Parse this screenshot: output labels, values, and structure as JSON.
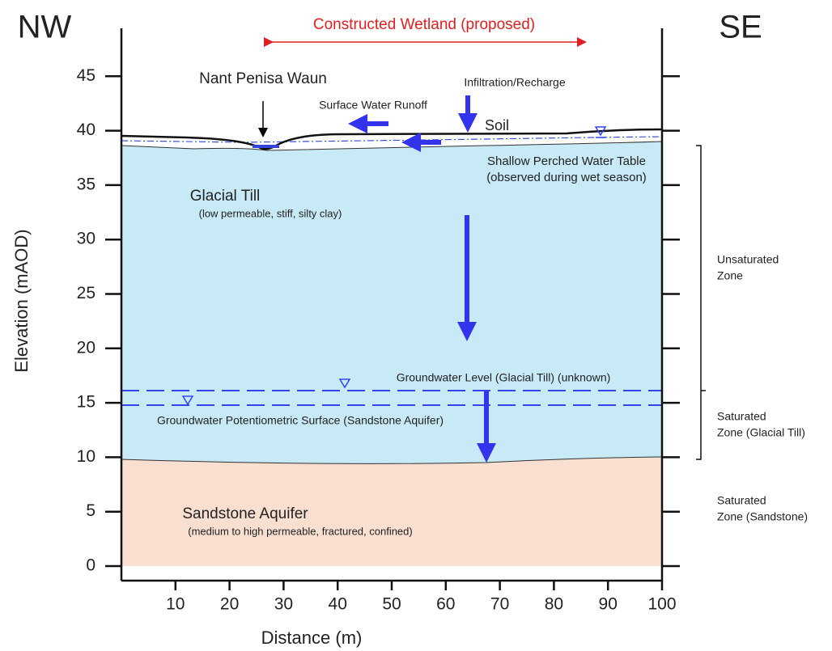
{
  "corner_labels": {
    "left": "NW",
    "right": "SE"
  },
  "title": "Constructed Wetland (proposed)",
  "axes": {
    "y_label": "Elevation (mAOD)",
    "x_label": "Distance (m)",
    "xlim": [
      0,
      100
    ],
    "ylim": [
      0,
      50
    ],
    "yticks": [
      0,
      5,
      10,
      15,
      20,
      25,
      30,
      35,
      40,
      45
    ],
    "xticks": [
      10,
      20,
      30,
      40,
      50,
      60,
      70,
      80,
      90,
      100
    ]
  },
  "labels": {
    "stream": "Nant Penisa Waun",
    "runoff": "Surface Water Runoff",
    "recharge": "Infiltration/Recharge",
    "soil": "Soil",
    "perched": [
      "Shallow Perched Water Table",
      "(observed during wet season)"
    ],
    "till": "Glacial Till",
    "till_desc": "(low permeable, stiff, silty clay)",
    "gw_till": "Groundwater Level (Glacial Till) (unknown)",
    "gw_sandstone": "Groundwater Potentiometric Surface (Sandstone Aquifer)",
    "sandstone": "Sandstone Aquifer",
    "sandstone_desc": "(medium to high permeable, fractured, confined)"
  },
  "zones": [
    [
      "Unsaturated",
      "Zone"
    ],
    [
      "Saturated",
      "Zone (Glacial Till)"
    ],
    [
      "Saturated",
      "Zone (Sandstone)"
    ]
  ]
}
